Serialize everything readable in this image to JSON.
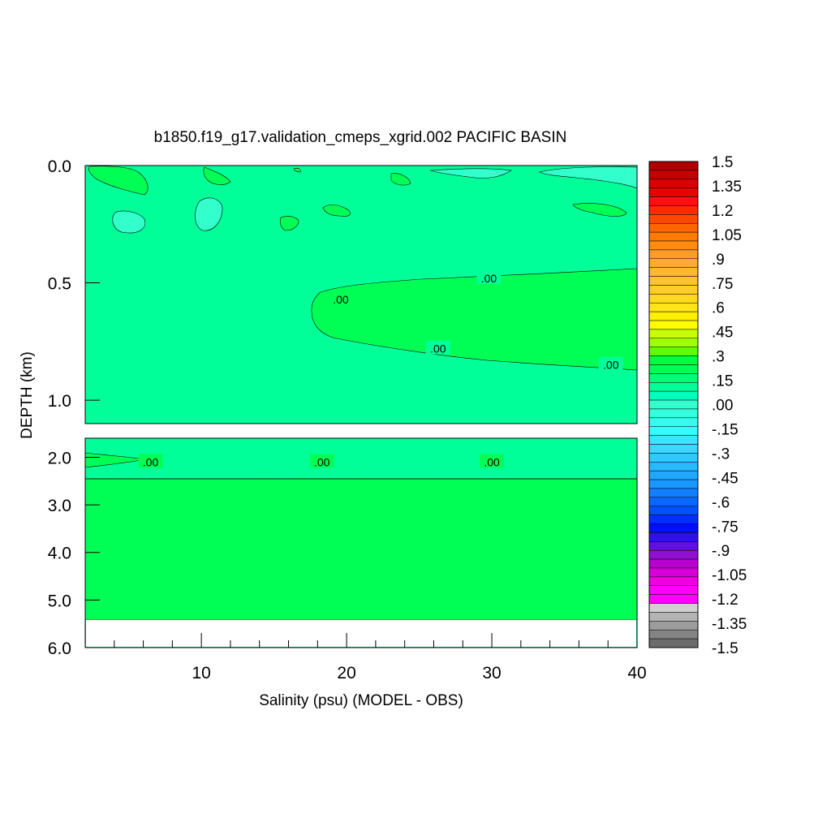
{
  "chart_data": {
    "type": "heatmap",
    "title": "b1850.f19_g17.validation_cmeps_xgrid.002 PACIFIC BASIN",
    "xlabel": "Salinity (psu) (MODEL - OBS)",
    "ylabel": "DEPTH (km)",
    "xlim": [
      2,
      40
    ],
    "x_ticks": [
      "10",
      "20",
      "30",
      "40"
    ],
    "panels": [
      {
        "name": "upper",
        "ylim": [
          0.0,
          1.1
        ],
        "y_ticks": [
          "0.0",
          "0.5",
          "1.0"
        ]
      },
      {
        "name": "lower",
        "ylim": [
          1.6,
          6.0
        ],
        "y_ticks": [
          "2.0",
          "3.0",
          "4.0",
          "5.0",
          "6.0"
        ]
      }
    ],
    "contour_labels": [
      {
        "text": ".00",
        "x": 19.6,
        "depth": 0.57
      },
      {
        "text": ".00",
        "x": 29.8,
        "depth": 0.48
      },
      {
        "text": ".00",
        "x": 26.3,
        "depth": 0.78
      },
      {
        "text": ".00",
        "x": 38.2,
        "depth": 0.85
      },
      {
        "text": ".00",
        "x": 6.5,
        "depth": 2.1
      },
      {
        "text": ".00",
        "x": 18.3,
        "depth": 2.1
      },
      {
        "text": ".00",
        "x": 30.0,
        "depth": 2.1
      }
    ],
    "fill_colors": {
      "background": "#00ff99",
      "positive": "#00ff55",
      "negative": "#33ffcc",
      "missing": "#ffffff"
    },
    "colorbar": {
      "min": -1.5,
      "max": 1.5,
      "labels": [
        "1.5",
        "1.35",
        "1.2",
        "1.05",
        ".9",
        ".75",
        ".6",
        ".45",
        ".3",
        ".15",
        ".00",
        "-.15",
        "-.3",
        "-.45",
        "-.6",
        "-.75",
        "-.9",
        "-1.05",
        "-1.2",
        "-1.35",
        "-1.5"
      ],
      "colors": [
        "#b00000",
        "#c40000",
        "#d80000",
        "#ec0000",
        "#ff1010",
        "#ff2a00",
        "#ff4800",
        "#ff6600",
        "#ff7a00",
        "#ff8c10",
        "#ff9c28",
        "#ffaa30",
        "#ffb830",
        "#ffc230",
        "#ffcc28",
        "#ffd820",
        "#ffe418",
        "#fff000",
        "#fffc00",
        "#c8ff00",
        "#a0ff00",
        "#60ff00",
        "#00ff40",
        "#00ff55",
        "#00ff77",
        "#00ff99",
        "#00ffbb",
        "#33ffcc",
        "#33ffdd",
        "#33ffee",
        "#33ffff",
        "#3ae6ff",
        "#38d8ff",
        "#30c8ff",
        "#28b8ff",
        "#20a8ff",
        "#1898ff",
        "#1080ff",
        "#0868ff",
        "#0050ff",
        "#0030ff",
        "#0010ff",
        "#3010e8",
        "#6010d8",
        "#9010d0",
        "#b800d0",
        "#d800d8",
        "#f000e0",
        "#ff00ff",
        "#ff00ff",
        "#d0d0d0",
        "#b4b4b4",
        "#9c9c9c",
        "#848484",
        "#6c6c6c"
      ]
    }
  }
}
